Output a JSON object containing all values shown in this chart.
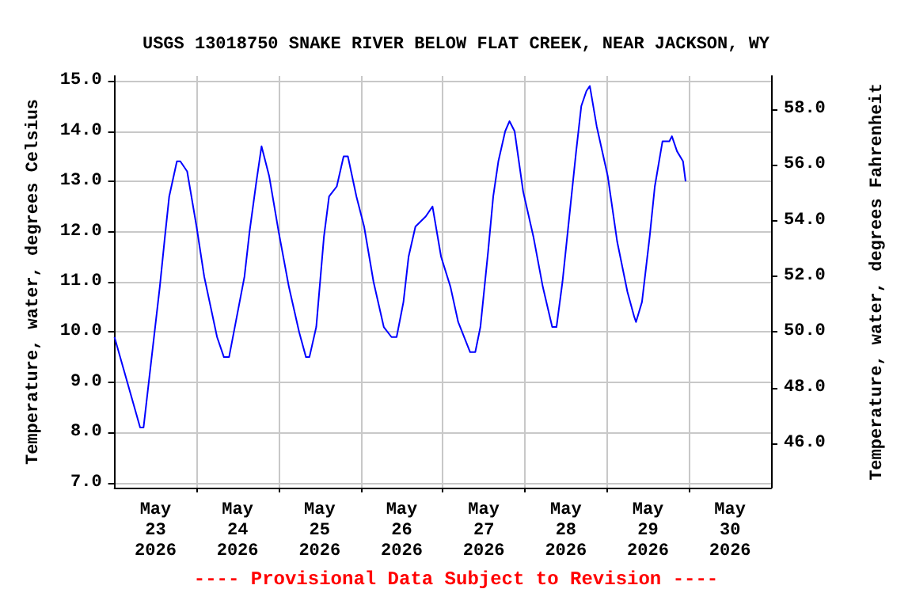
{
  "chart_data": {
    "type": "line",
    "title": "USGS 13018750 SNAKE RIVER BELOW FLAT CREEK, NEAR JACKSON, WY",
    "ylabel": "Temperature, water, degrees Celsius",
    "y2label": "Temperature, water, degrees Fahrenheit",
    "annotations": [
      "---- Provisional Data Subject to Revision ----"
    ],
    "x": [
      "2026-05-23T00:00",
      "2026-05-23T07:30",
      "2026-05-23T08:30",
      "2026-05-23T13:15",
      "2026-05-23T14:45",
      "2026-05-23T16:00",
      "2026-05-23T18:15",
      "2026-05-23T19:15",
      "2026-05-23T21:15",
      "2026-05-24T00:00",
      "2026-05-24T02:15",
      "2026-05-24T06:00",
      "2026-05-24T08:00",
      "2026-05-24T09:30",
      "2026-05-24T11:45",
      "2026-05-24T14:00",
      "2026-05-24T15:30",
      "2026-05-24T17:30",
      "2026-05-24T19:00",
      "2026-05-24T21:15",
      "2026-05-25T00:00",
      "2026-05-25T03:00",
      "2026-05-25T06:00",
      "2026-05-25T08:00",
      "2026-05-25T09:00",
      "2026-05-25T11:00",
      "2026-05-25T13:15",
      "2026-05-25T14:45",
      "2026-05-25T17:00",
      "2026-05-25T19:00",
      "2026-05-25T20:15",
      "2026-05-25T22:45",
      "2026-05-26T01:00",
      "2026-05-26T03:45",
      "2026-05-26T06:45",
      "2026-05-26T09:00",
      "2026-05-26T10:30",
      "2026-05-26T12:30",
      "2026-05-26T14:00",
      "2026-05-26T16:00",
      "2026-05-26T19:00",
      "2026-05-26T21:00",
      "2026-05-26T23:30",
      "2026-05-27T02:15",
      "2026-05-27T04:30",
      "2026-05-27T08:00",
      "2026-05-27T09:30",
      "2026-05-27T11:00",
      "2026-05-27T13:15",
      "2026-05-27T14:45",
      "2026-05-27T16:15",
      "2026-05-27T18:15",
      "2026-05-27T19:30",
      "2026-05-27T21:00",
      "2026-05-27T23:30",
      "2026-05-28T02:30",
      "2026-05-28T05:15",
      "2026-05-28T08:00",
      "2026-05-28T09:15",
      "2026-05-28T11:00",
      "2026-05-28T13:00",
      "2026-05-28T15:00",
      "2026-05-28T16:30",
      "2026-05-28T18:00",
      "2026-05-28T19:00",
      "2026-05-28T21:00",
      "2026-05-29T00:15",
      "2026-05-29T03:00",
      "2026-05-29T06:00",
      "2026-05-29T08:00",
      "2026-05-29T08:30",
      "2026-05-29T10:15",
      "2026-05-29T12:30",
      "2026-05-29T14:00",
      "2026-05-29T16:15",
      "2026-05-29T18:15",
      "2026-05-29T19:00",
      "2026-05-29T20:30",
      "2026-05-29T22:15",
      "2026-05-29T23:00"
    ],
    "series": [
      {
        "color": "#0000ff",
        "values": [
          9.9,
          8.1,
          8.1,
          10.9,
          11.9,
          12.7,
          13.4,
          13.4,
          13.2,
          12.1,
          11.1,
          9.9,
          9.5,
          9.5,
          10.3,
          11.1,
          12.0,
          13.0,
          13.7,
          13.1,
          12.0,
          10.9,
          10.0,
          9.5,
          9.5,
          10.1,
          11.9,
          12.7,
          12.9,
          13.5,
          13.5,
          12.7,
          12.1,
          11.0,
          10.1,
          9.9,
          9.9,
          10.6,
          11.5,
          12.1,
          12.3,
          12.5,
          11.5,
          10.9,
          10.2,
          9.6,
          9.6,
          10.1,
          11.6,
          12.7,
          13.4,
          14.0,
          14.2,
          14.0,
          12.8,
          11.9,
          10.9,
          10.1,
          10.1,
          11.0,
          12.3,
          13.6,
          14.5,
          14.8,
          14.9,
          14.1,
          13.1,
          11.8,
          10.8,
          10.3,
          10.2,
          10.6,
          11.9,
          12.9,
          13.8,
          13.8,
          13.9,
          13.6,
          13.4,
          13.0
        ]
      }
    ],
    "xlim": [
      "2026-05-23T00:00",
      "2026-05-31T00:00"
    ],
    "xticks": [
      {
        "value": "2026-05-23T12:00",
        "label": "May\n23\n2026"
      },
      {
        "value": "2026-05-24T00:00",
        "label": null
      },
      {
        "value": "2026-05-24T12:00",
        "label": "May\n24\n2026"
      },
      {
        "value": "2026-05-25T00:00",
        "label": null
      },
      {
        "value": "2026-05-25T12:00",
        "label": "May\n25\n2026"
      },
      {
        "value": "2026-05-26T00:00",
        "label": null
      },
      {
        "value": "2026-05-26T12:00",
        "label": "May\n26\n2026"
      },
      {
        "value": "2026-05-27T00:00",
        "label": null
      },
      {
        "value": "2026-05-27T12:00",
        "label": "May\n27\n2026"
      },
      {
        "value": "2026-05-28T00:00",
        "label": null
      },
      {
        "value": "2026-05-28T12:00",
        "label": "May\n28\n2026"
      },
      {
        "value": "2026-05-29T00:00",
        "label": null
      },
      {
        "value": "2026-05-29T12:00",
        "label": "May\n29\n2026"
      },
      {
        "value": "2026-05-30T00:00",
        "label": null
      },
      {
        "value": "2026-05-30T12:00",
        "label": "May\n30\n2026"
      }
    ],
    "ylim": [
      6.9,
      15.1
    ],
    "yticks": [
      {
        "value": 7,
        "label": "7.0"
      },
      {
        "value": 8,
        "label": "8.0"
      },
      {
        "value": 9,
        "label": "9.0"
      },
      {
        "value": 10,
        "label": "10.0"
      },
      {
        "value": 11,
        "label": "11.0"
      },
      {
        "value": 12,
        "label": "12.0"
      },
      {
        "value": 13,
        "label": "13.0"
      },
      {
        "value": 14,
        "label": "14.0"
      },
      {
        "value": 15,
        "label": "15.0"
      }
    ],
    "y2lim": [
      44.4,
      59.2
    ],
    "y2ticks": [
      {
        "value": 46,
        "label": "46.0"
      },
      {
        "value": 48,
        "label": "48.0"
      },
      {
        "value": 50,
        "label": "50.0"
      },
      {
        "value": 52,
        "label": "52.0"
      },
      {
        "value": 54,
        "label": "54.0"
      },
      {
        "value": 56,
        "label": "56.0"
      },
      {
        "value": 58,
        "label": "58.0"
      }
    ],
    "grid": true,
    "marker": "none",
    "line_style": "solid"
  }
}
